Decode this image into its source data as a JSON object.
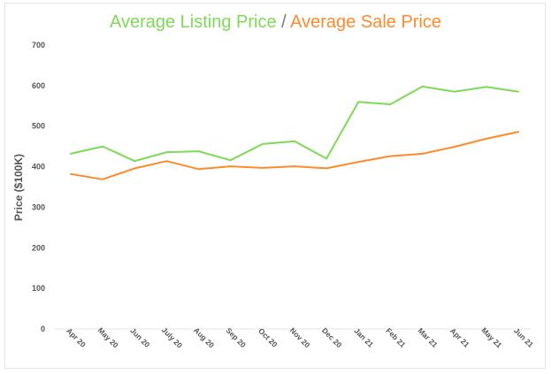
{
  "chart_data": {
    "type": "line",
    "title_parts": {
      "first": "Average Listing Price",
      "separator": " / ",
      "second": "Average Sale Price"
    },
    "xlabel": "",
    "ylabel": "Price ($100K)",
    "ylim": [
      0,
      700
    ],
    "yticks": [
      0,
      100,
      200,
      300,
      400,
      500,
      600,
      700
    ],
    "categories": [
      "Apr 20",
      "May 20",
      "Jun 20",
      "July 20",
      "Aug 20",
      "Sep 20",
      "Oct 20",
      "Nov 20",
      "Dec 20",
      "Jan 21",
      "Feb 21",
      "Mar 21",
      "Apr 21",
      "May 21",
      "Jun 21"
    ],
    "series": [
      {
        "name": "Average Listing Price",
        "color": "#7ed957",
        "values": [
          432,
          450,
          414,
          436,
          438,
          416,
          456,
          463,
          420,
          560,
          554,
          598,
          585,
          597,
          585
        ]
      },
      {
        "name": "Average Sale Price",
        "color": "#ff8a2b",
        "values": [
          382,
          369,
          396,
          414,
          394,
          401,
          397,
          401,
          396,
          412,
          426,
          432,
          449,
          469,
          486
        ]
      }
    ],
    "grid": false,
    "legend": "none"
  }
}
